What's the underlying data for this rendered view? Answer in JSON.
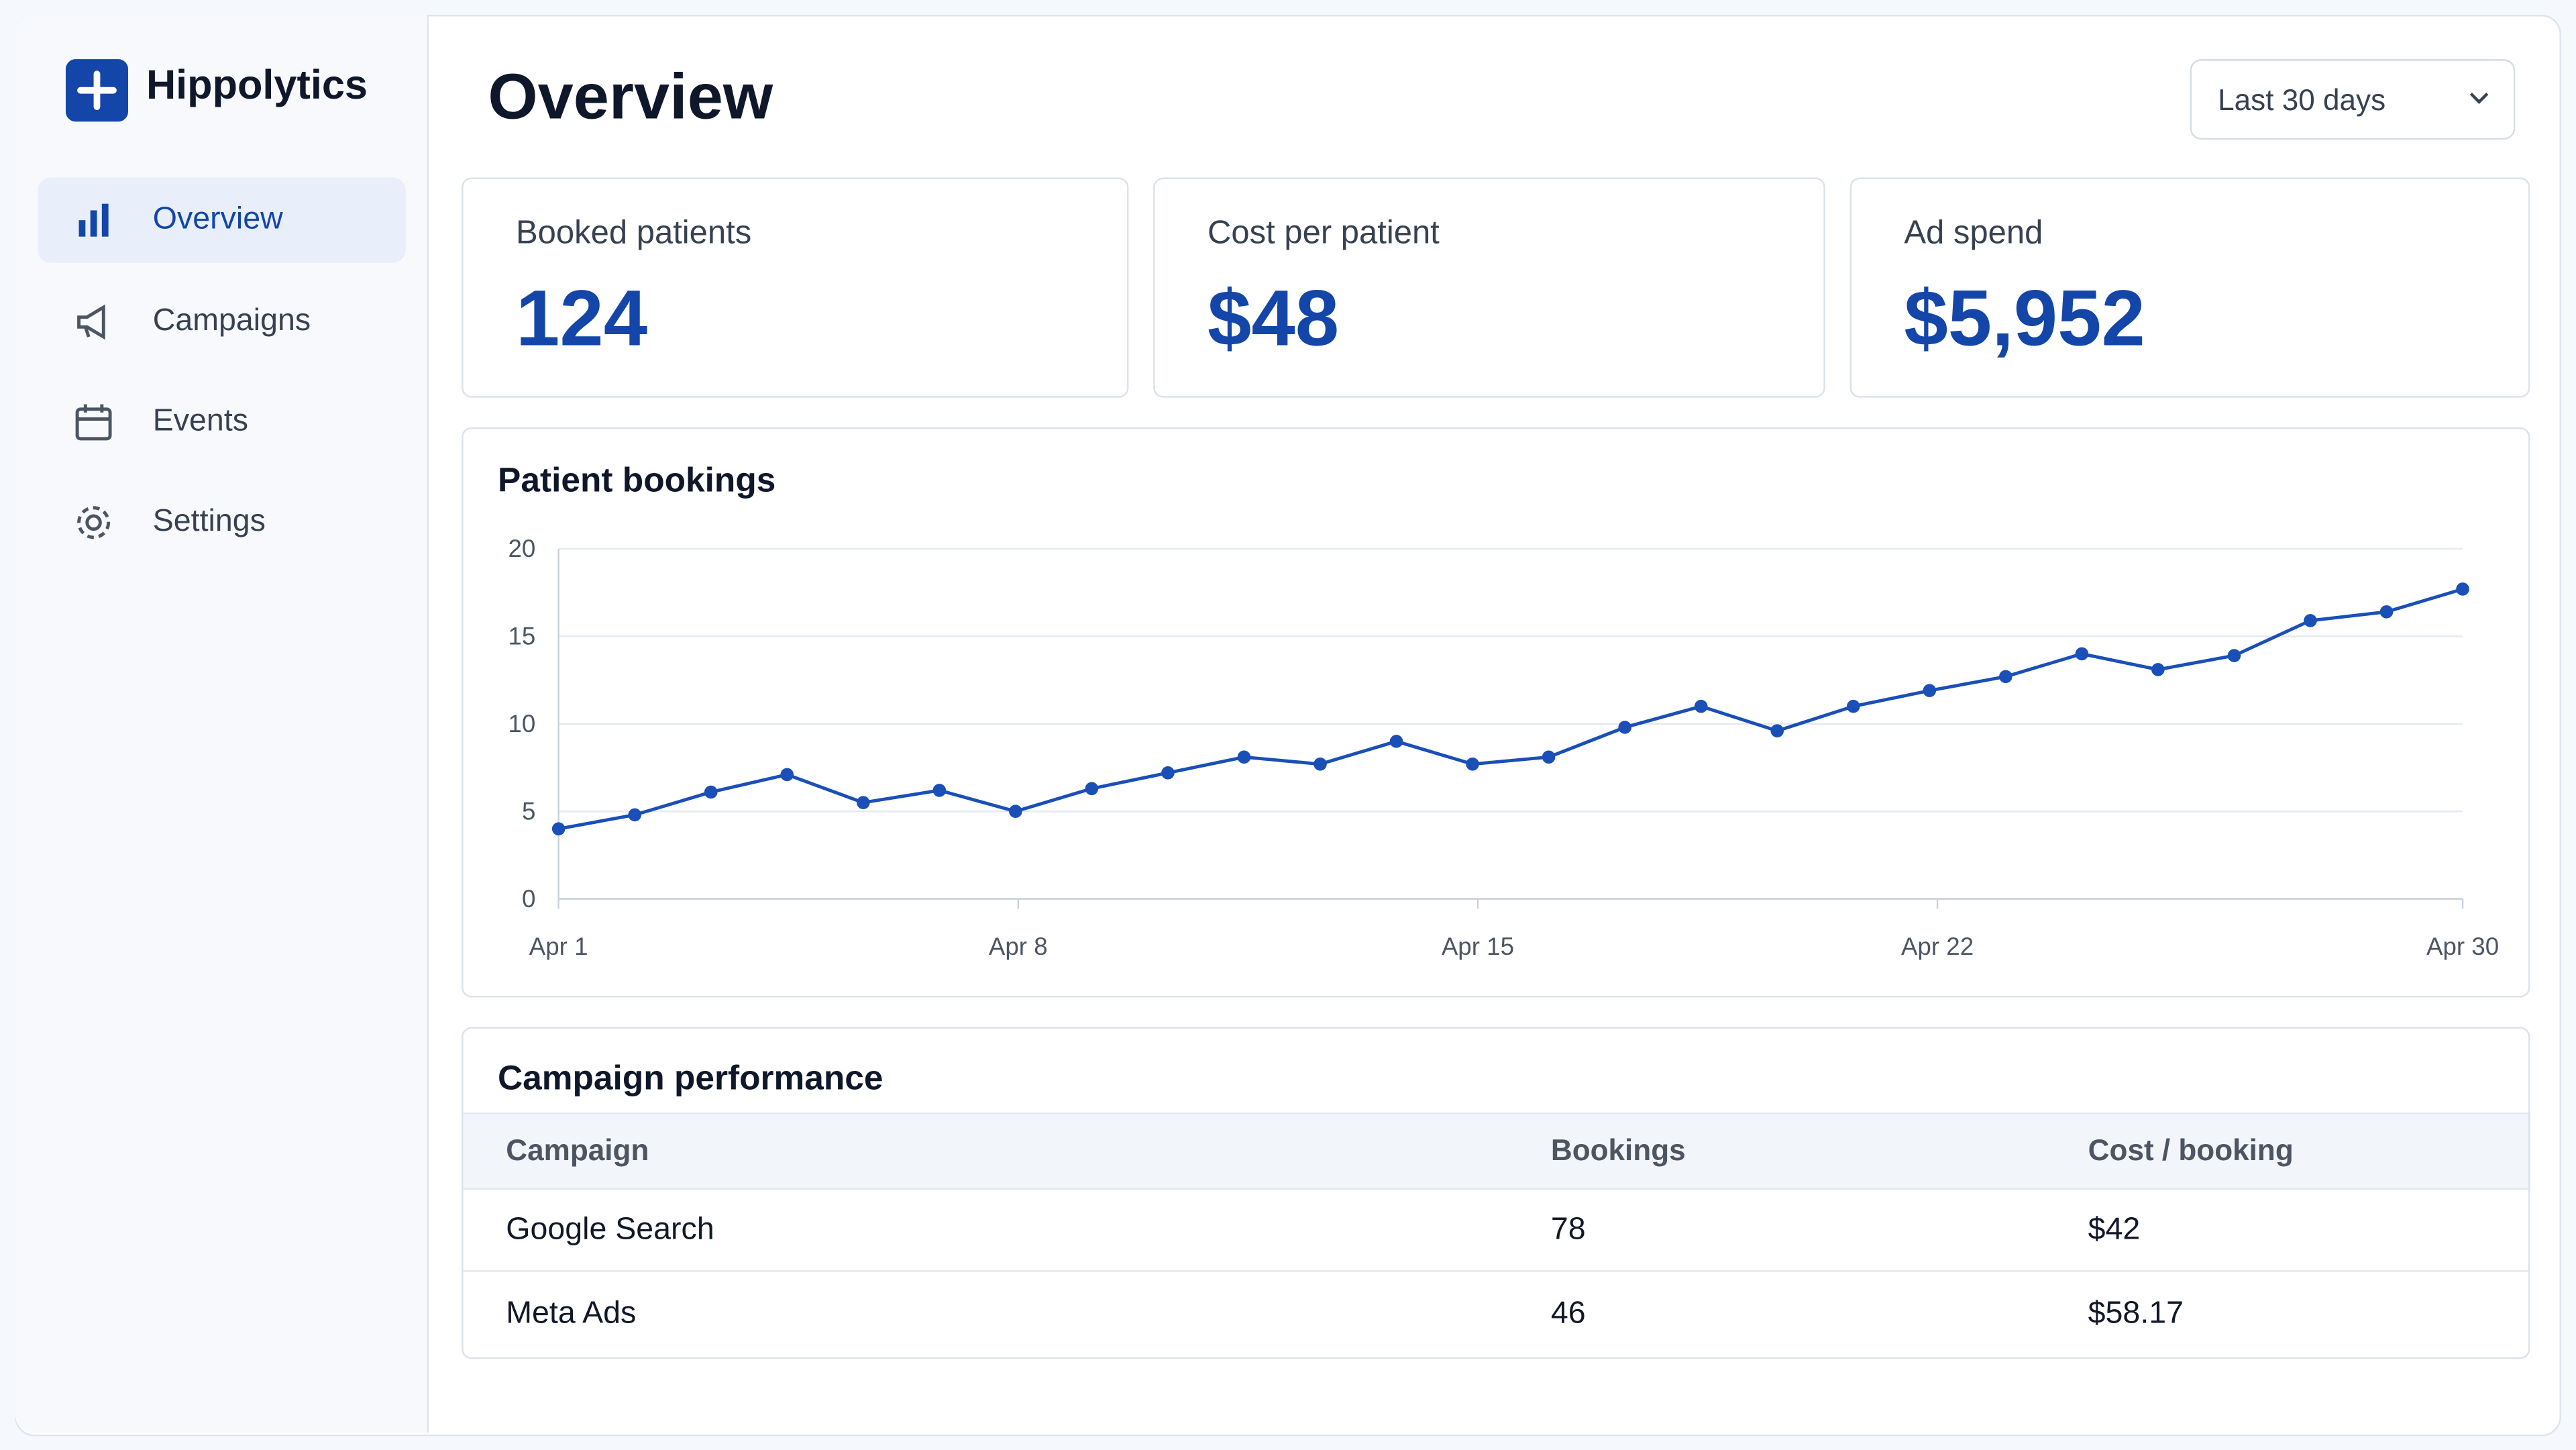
{
  "app": {
    "name": "Hippolytics"
  },
  "nav": [
    {
      "label": "Overview"
    },
    {
      "label": "Campaigns"
    },
    {
      "label": "Events"
    },
    {
      "label": "Settings"
    }
  ],
  "header": {
    "title": "Overview",
    "date_range": "Last 30 days"
  },
  "kpis": [
    {
      "label": "Booked patients",
      "value": "124"
    },
    {
      "label": "Cost per patient",
      "value": "$48"
    },
    {
      "label": "Ad spend",
      "value": "$5,952"
    }
  ],
  "chart_data": {
    "type": "line",
    "title": "Patient bookings",
    "x": [
      1,
      2.16,
      3.32,
      4.48,
      5.64,
      6.8,
      7.96,
      9.12,
      10.28,
      11.44,
      12.6,
      13.76,
      14.92,
      16.08,
      17.24,
      18.4,
      19.56,
      20.72,
      21.88,
      23.04,
      24.2,
      25.36,
      26.52,
      27.68,
      28.84,
      30
    ],
    "series": [
      {
        "name": "Patient bookings",
        "color": "#1a4fb8",
        "values": [
          4.0,
          4.8,
          6.1,
          7.1,
          5.5,
          6.2,
          5.0,
          6.3,
          7.2,
          8.1,
          7.7,
          9.0,
          7.7,
          8.1,
          9.8,
          11.0,
          9.6,
          11.0,
          11.9,
          12.7,
          14.0,
          13.1,
          13.9,
          15.9,
          16.4,
          17.7
        ]
      }
    ],
    "xlim": [
      1,
      30
    ],
    "xticks": [
      {
        "value": 1,
        "label": "Apr 1"
      },
      {
        "value": 8,
        "label": "Apr 8"
      },
      {
        "value": 15,
        "label": "Apr 15"
      },
      {
        "value": 22,
        "label": "Apr 22"
      },
      {
        "value": 30,
        "label": "Apr 30"
      }
    ],
    "ylim": [
      0,
      20
    ],
    "yticks": [
      0,
      5,
      10,
      15,
      20
    ],
    "grid": true
  },
  "table": {
    "title": "Campaign performance",
    "columns": [
      "Campaign",
      "Bookings",
      "Cost / booking"
    ],
    "rows": [
      [
        "Google Search",
        78,
        "$42"
      ],
      [
        "Meta Ads",
        46,
        "$58.17"
      ]
    ]
  }
}
